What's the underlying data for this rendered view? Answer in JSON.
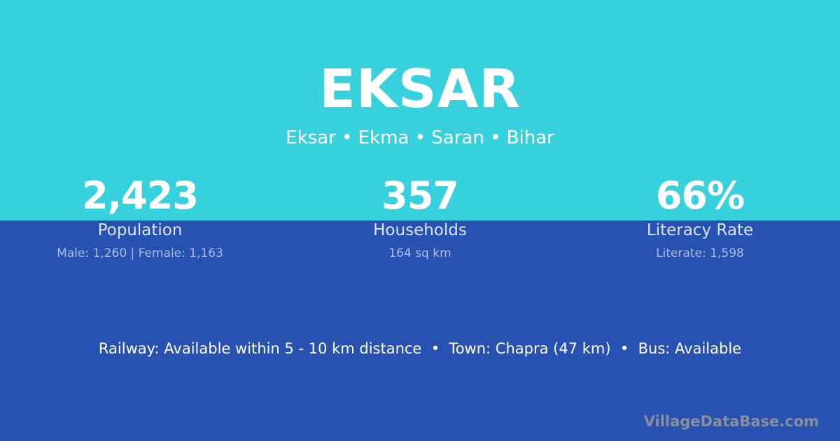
{
  "header": {
    "title": "EKSAR",
    "subtitle": "Eksar • Ekma • Saran • Bihar"
  },
  "colors": {
    "top": "#37d1dd",
    "bottom": "#2752b2"
  },
  "stats": [
    {
      "value": "2,423",
      "label": "Population",
      "detail": "Male: 1,260 | Female: 1,163"
    },
    {
      "value": "357",
      "label": "Households",
      "detail": "164 sq km"
    },
    {
      "value": "66%",
      "label": "Literacy Rate",
      "detail": "Literate: 1,598"
    }
  ],
  "info": "Railway: Available within 5 - 10 km distance  •  Town: Chapra (47 km)  •  Bus: Available",
  "watermark": "VillageDataBase.com"
}
